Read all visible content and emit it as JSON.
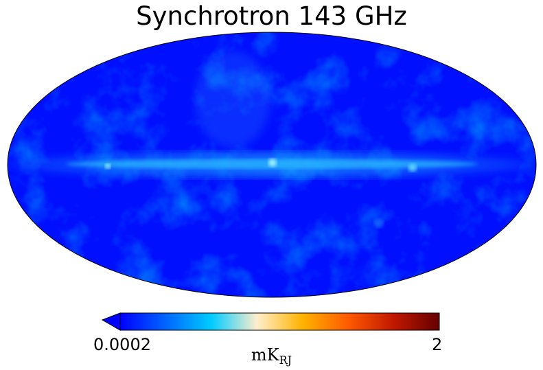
{
  "title": "Synchrotron 143 GHz",
  "colorbar": {
    "min_label": "0.0002",
    "max_label": "2",
    "unit_main": "mK",
    "unit_sub": "RJ",
    "colors": [
      "#0000ff",
      "#0066ff",
      "#00ccff",
      "#ffeecc",
      "#ffb300",
      "#ff5a00",
      "#c01800",
      "#640000"
    ]
  },
  "map": {
    "projection": "mollweide",
    "base_color": "#0010ff",
    "plane_color": "#00b4ff",
    "hotspot_color": "#80e8ff"
  }
}
